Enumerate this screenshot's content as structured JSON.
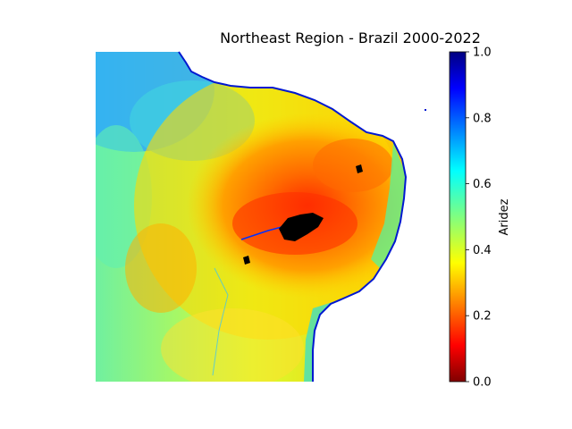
{
  "title": "Northeast Region - Brazil 2000-2022",
  "colorbar": {
    "label": "Aridez",
    "ticks": [
      "0.0",
      "0.2",
      "0.4",
      "0.6",
      "0.8",
      "1.0"
    ],
    "colormap": "jet",
    "range": [
      0.0,
      1.0
    ]
  },
  "map": {
    "region": "Northeast Brazil",
    "colors": {
      "very_arid": "#ff2200",
      "arid": "#ff8c00",
      "semi": "#ffd000",
      "moderate": "#c8ff30",
      "humid": "#40f0c0",
      "very_humid": "#20a0ff",
      "water": "#0010d0",
      "no_data": "#000000"
    }
  }
}
